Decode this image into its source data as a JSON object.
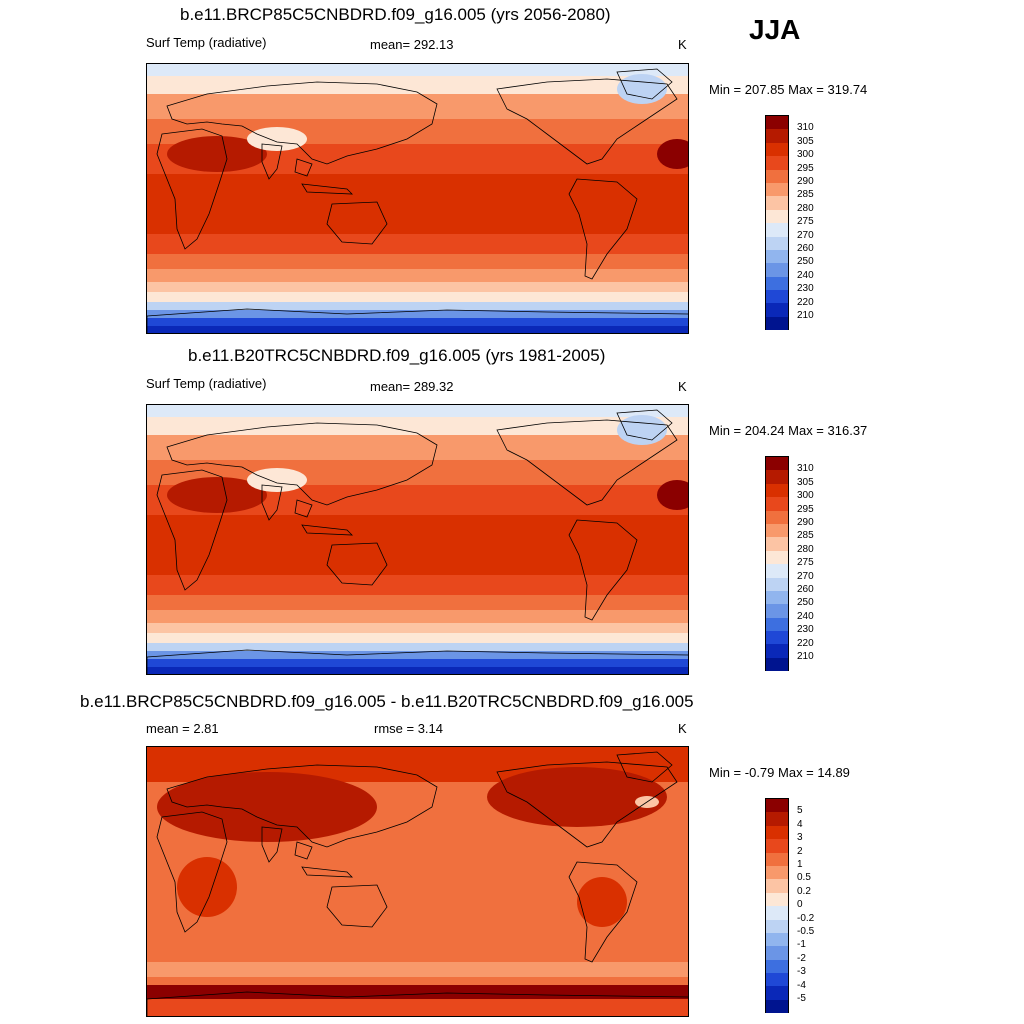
{
  "season": "JJA",
  "panels": [
    {
      "title": "b.e11.BRCP85C5CNBDRD.f09_g16.005 (yrs 2056-2080)",
      "left_label": "Surf Temp (radiative)",
      "mean_label": "mean= 292.13",
      "units": "K",
      "minmax": "Min = 207.85 Max = 319.74"
    },
    {
      "title": "b.e11.B20TRC5CNBDRD.f09_g16.005 (yrs 1981-2005)",
      "left_label": "Surf Temp (radiative)",
      "mean_label": "mean= 289.32",
      "units": "K",
      "minmax": "Min = 204.24 Max = 316.37"
    },
    {
      "title": "b.e11.BRCP85C5CNBDRD.f09_g16.005 - b.e11.B20TRC5CNBDRD.f09_g16.005",
      "left_label": "mean =   2.81",
      "mean_label": "rmse =   3.14",
      "units": "K",
      "minmax": "Min =  -0.79 Max =  14.89"
    }
  ],
  "abs_scale": {
    "labels": [
      "310",
      "305",
      "300",
      "295",
      "290",
      "285",
      "280",
      "275",
      "270",
      "260",
      "250",
      "240",
      "230",
      "220",
      "210"
    ],
    "colors": [
      "#8b0000",
      "#b51a00",
      "#d93000",
      "#e8481c",
      "#f0703e",
      "#f8996b",
      "#fcc4a4",
      "#fde7d6",
      "#dde9f8",
      "#bdd3f3",
      "#91b5ee",
      "#6b95e6",
      "#3d6fe0",
      "#1f48d6",
      "#0a28b8",
      "#00148f"
    ]
  },
  "diff_scale": {
    "labels": [
      "5",
      "4",
      "3",
      "2",
      "1",
      "0.5",
      "0.2",
      "0",
      "-0.2",
      "-0.5",
      "-1",
      "-2",
      "-3",
      "-4",
      "-5"
    ],
    "colors": [
      "#8b0000",
      "#b51a00",
      "#d93000",
      "#e8481c",
      "#f0703e",
      "#f8996b",
      "#fcc4a4",
      "#fde7d6",
      "#dde9f8",
      "#bdd3f3",
      "#91b5ee",
      "#6b95e6",
      "#3d6fe0",
      "#1f48d6",
      "#0a28b8",
      "#00148f"
    ]
  }
}
